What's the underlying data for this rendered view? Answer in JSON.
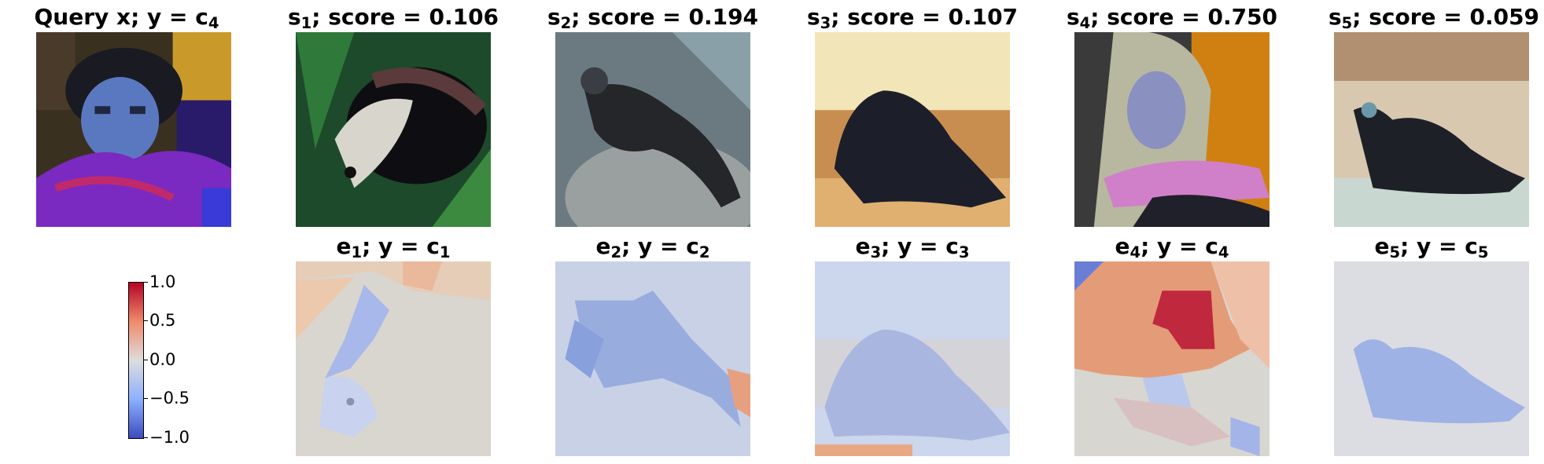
{
  "top_row": [
    {
      "prefix": "Query x; y",
      "eq": " = ",
      "var": "c",
      "sub": "4",
      "tail": ""
    },
    {
      "prefix": "s",
      "sub": "1",
      "tail": "; score = 0.106"
    },
    {
      "prefix": "s",
      "sub": "2",
      "tail": "; score = 0.194"
    },
    {
      "prefix": "s",
      "sub": "3",
      "tail": "; score = 0.107"
    },
    {
      "prefix": "s",
      "sub": "4",
      "tail": "; score = 0.750"
    },
    {
      "prefix": "s",
      "sub": "5",
      "tail": "; score = 0.059"
    }
  ],
  "bottom_row": [
    {
      "prefix": "e",
      "sub": "1",
      "mid": "; y = c",
      "sub2": "1"
    },
    {
      "prefix": "e",
      "sub": "2",
      "mid": "; y = c",
      "sub2": "2"
    },
    {
      "prefix": "e",
      "sub": "3",
      "mid": "; y = c",
      "sub2": "3"
    },
    {
      "prefix": "e",
      "sub": "4",
      "mid": "; y = c",
      "sub2": "4"
    },
    {
      "prefix": "e",
      "sub": "5",
      "mid": "; y = c",
      "sub2": "5"
    }
  ],
  "colorbar": {
    "ticks": [
      "1.0",
      "0.5",
      "0.0",
      "−0.5",
      "−1.0"
    ],
    "colors": [
      "#3b4cc0",
      "#dddddd",
      "#b40426"
    ]
  }
}
